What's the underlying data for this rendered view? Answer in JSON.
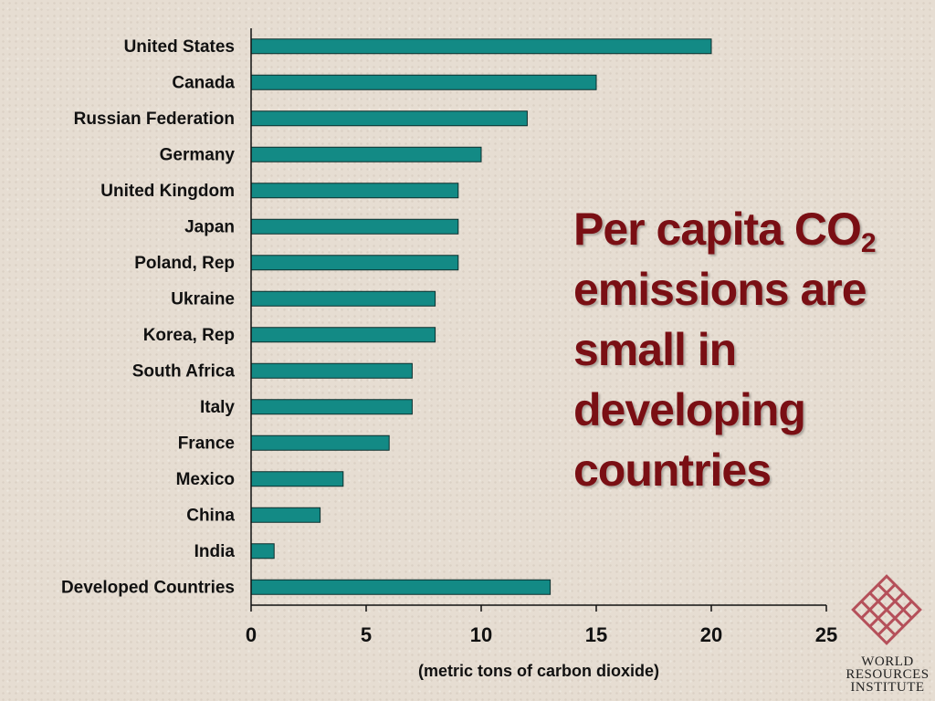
{
  "chart_data": {
    "type": "bar",
    "orientation": "horizontal",
    "categories": [
      "United States",
      "Canada",
      "Russian Federation",
      "Germany",
      "United Kingdom",
      "Japan",
      "Poland, Rep",
      "Ukraine",
      "Korea, Rep",
      "South Africa",
      "Italy",
      "France",
      "Mexico",
      "China",
      "India",
      "Developed Countries"
    ],
    "values": [
      20,
      15,
      12,
      10,
      9,
      9,
      9,
      8,
      8,
      7,
      7,
      6,
      4,
      3,
      1,
      13
    ],
    "xlabel": "(metric tons of carbon dioxide)",
    "xlim": [
      0,
      25
    ],
    "xticks": [
      0,
      5,
      10,
      15,
      20,
      25
    ],
    "grid": false,
    "bar_color": "#138a85"
  },
  "headline": {
    "line1": "Per capita CO",
    "line1_sub": "2",
    "line2": "emissions are",
    "line3": "small in",
    "line4": "developing",
    "line5": "countries"
  },
  "logo": {
    "line1": "WORLD",
    "line2": "RESOURCES",
    "line3": "INSTITUTE"
  },
  "colors": {
    "background": "#e6ddd2",
    "headline": "#7a0f14",
    "logo_mark": "#b5505a"
  }
}
